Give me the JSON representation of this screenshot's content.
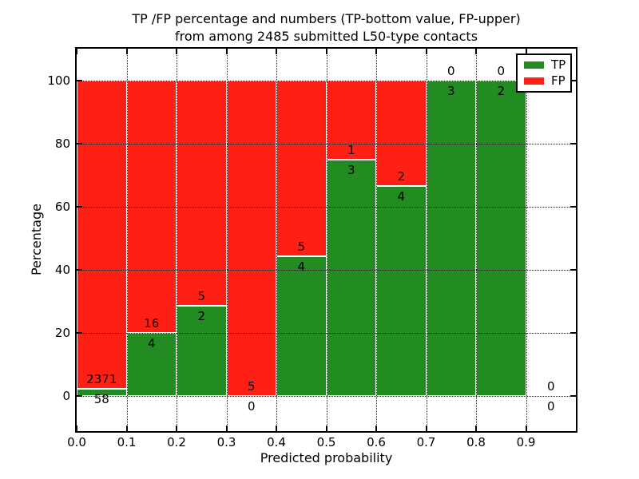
{
  "figure": {
    "title_line1": "TP /FP percentage and numbers (TP-bottom value, FP-upper)",
    "title_line2": "from among 2485 submitted L50-type contacts",
    "xlabel": "Predicted probability",
    "ylabel": "Percentage"
  },
  "legend": {
    "position": "upper right",
    "items": [
      {
        "label": "TP",
        "color": "#228b22"
      },
      {
        "label": "FP",
        "color": "#ff2015"
      }
    ]
  },
  "chart_data": {
    "type": "bar",
    "stacked": true,
    "normalized": "each bin stacked to 100%, green TP portion = tp/(tp+fp)",
    "title": "TP /FP percentage and numbers (TP-bottom value, FP-upper) from among 2485 submitted L50-type contacts",
    "xlabel": "Predicted probability",
    "ylabel": "Percentage",
    "total_contacts": 2485,
    "bin_width": 0.1,
    "bins": [
      {
        "range": "0.0-0.1",
        "tp": 58,
        "fp": 2371,
        "tp_percent": 2.39
      },
      {
        "range": "0.1-0.2",
        "tp": 4,
        "fp": 16,
        "tp_percent": 20.0
      },
      {
        "range": "0.2-0.3",
        "tp": 2,
        "fp": 5,
        "tp_percent": 28.57
      },
      {
        "range": "0.3-0.4",
        "tp": 0,
        "fp": 5,
        "tp_percent": 0.0
      },
      {
        "range": "0.4-0.5",
        "tp": 4,
        "fp": 5,
        "tp_percent": 44.44
      },
      {
        "range": "0.5-0.6",
        "tp": 3,
        "fp": 1,
        "tp_percent": 75.0
      },
      {
        "range": "0.6-0.7",
        "tp": 4,
        "fp": 2,
        "tp_percent": 66.67
      },
      {
        "range": "0.7-0.8",
        "tp": 3,
        "fp": 0,
        "tp_percent": 100.0
      },
      {
        "range": "0.8-0.9",
        "tp": 2,
        "fp": 0,
        "tp_percent": 100.0
      },
      {
        "range": "0.9-1.0",
        "tp": 0,
        "fp": 0,
        "tp_percent": null
      }
    ],
    "series": [
      {
        "name": "TP",
        "color": "#228b22",
        "counts": [
          58,
          4,
          2,
          0,
          4,
          3,
          4,
          3,
          2,
          0
        ]
      },
      {
        "name": "FP",
        "color": "#ff2015",
        "counts": [
          2371,
          16,
          5,
          5,
          5,
          1,
          2,
          0,
          0,
          0
        ]
      }
    ],
    "xticks": [
      "0.0",
      "0.1",
      "0.2",
      "0.3",
      "0.4",
      "0.5",
      "0.6",
      "0.7",
      "0.8",
      "0.9"
    ],
    "yticks": [
      0,
      20,
      40,
      60,
      80,
      100
    ],
    "xlim": [
      0.0,
      1.0
    ],
    "ylim": [
      -11,
      110
    ],
    "grid": "dotted black, both axes, drawn above bars",
    "legend_position": "upper right",
    "colors": {
      "tp": "#228b22",
      "fp": "#ff2015"
    }
  }
}
